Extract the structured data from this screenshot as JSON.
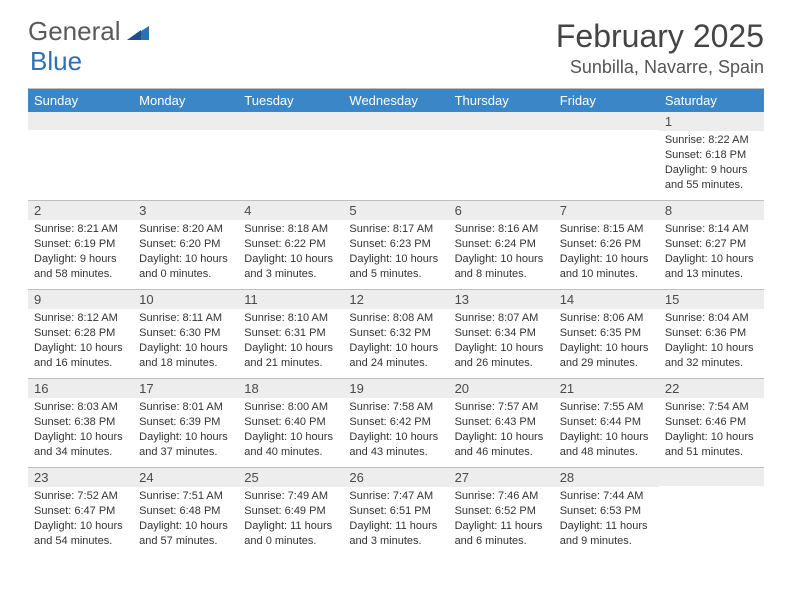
{
  "logo": {
    "part1": "General",
    "part2": "Blue"
  },
  "title": "February 2025",
  "location": "Sunbilla, Navarre, Spain",
  "colors": {
    "header_bg": "#3b86c6",
    "header_text": "#ffffff",
    "daynum_bg": "#ededed",
    "border": "#bfbfbf",
    "text": "#333333",
    "logo_gray": "#5a5a5a",
    "logo_blue": "#2f6fb3"
  },
  "dayHeaders": [
    "Sunday",
    "Monday",
    "Tuesday",
    "Wednesday",
    "Thursday",
    "Friday",
    "Saturday"
  ],
  "weeks": [
    [
      null,
      null,
      null,
      null,
      null,
      null,
      {
        "n": "1",
        "sr": "Sunrise: 8:22 AM",
        "ss": "Sunset: 6:18 PM",
        "dl1": "Daylight: 9 hours",
        "dl2": "and 55 minutes."
      }
    ],
    [
      {
        "n": "2",
        "sr": "Sunrise: 8:21 AM",
        "ss": "Sunset: 6:19 PM",
        "dl1": "Daylight: 9 hours",
        "dl2": "and 58 minutes."
      },
      {
        "n": "3",
        "sr": "Sunrise: 8:20 AM",
        "ss": "Sunset: 6:20 PM",
        "dl1": "Daylight: 10 hours",
        "dl2": "and 0 minutes."
      },
      {
        "n": "4",
        "sr": "Sunrise: 8:18 AM",
        "ss": "Sunset: 6:22 PM",
        "dl1": "Daylight: 10 hours",
        "dl2": "and 3 minutes."
      },
      {
        "n": "5",
        "sr": "Sunrise: 8:17 AM",
        "ss": "Sunset: 6:23 PM",
        "dl1": "Daylight: 10 hours",
        "dl2": "and 5 minutes."
      },
      {
        "n": "6",
        "sr": "Sunrise: 8:16 AM",
        "ss": "Sunset: 6:24 PM",
        "dl1": "Daylight: 10 hours",
        "dl2": "and 8 minutes."
      },
      {
        "n": "7",
        "sr": "Sunrise: 8:15 AM",
        "ss": "Sunset: 6:26 PM",
        "dl1": "Daylight: 10 hours",
        "dl2": "and 10 minutes."
      },
      {
        "n": "8",
        "sr": "Sunrise: 8:14 AM",
        "ss": "Sunset: 6:27 PM",
        "dl1": "Daylight: 10 hours",
        "dl2": "and 13 minutes."
      }
    ],
    [
      {
        "n": "9",
        "sr": "Sunrise: 8:12 AM",
        "ss": "Sunset: 6:28 PM",
        "dl1": "Daylight: 10 hours",
        "dl2": "and 16 minutes."
      },
      {
        "n": "10",
        "sr": "Sunrise: 8:11 AM",
        "ss": "Sunset: 6:30 PM",
        "dl1": "Daylight: 10 hours",
        "dl2": "and 18 minutes."
      },
      {
        "n": "11",
        "sr": "Sunrise: 8:10 AM",
        "ss": "Sunset: 6:31 PM",
        "dl1": "Daylight: 10 hours",
        "dl2": "and 21 minutes."
      },
      {
        "n": "12",
        "sr": "Sunrise: 8:08 AM",
        "ss": "Sunset: 6:32 PM",
        "dl1": "Daylight: 10 hours",
        "dl2": "and 24 minutes."
      },
      {
        "n": "13",
        "sr": "Sunrise: 8:07 AM",
        "ss": "Sunset: 6:34 PM",
        "dl1": "Daylight: 10 hours",
        "dl2": "and 26 minutes."
      },
      {
        "n": "14",
        "sr": "Sunrise: 8:06 AM",
        "ss": "Sunset: 6:35 PM",
        "dl1": "Daylight: 10 hours",
        "dl2": "and 29 minutes."
      },
      {
        "n": "15",
        "sr": "Sunrise: 8:04 AM",
        "ss": "Sunset: 6:36 PM",
        "dl1": "Daylight: 10 hours",
        "dl2": "and 32 minutes."
      }
    ],
    [
      {
        "n": "16",
        "sr": "Sunrise: 8:03 AM",
        "ss": "Sunset: 6:38 PM",
        "dl1": "Daylight: 10 hours",
        "dl2": "and 34 minutes."
      },
      {
        "n": "17",
        "sr": "Sunrise: 8:01 AM",
        "ss": "Sunset: 6:39 PM",
        "dl1": "Daylight: 10 hours",
        "dl2": "and 37 minutes."
      },
      {
        "n": "18",
        "sr": "Sunrise: 8:00 AM",
        "ss": "Sunset: 6:40 PM",
        "dl1": "Daylight: 10 hours",
        "dl2": "and 40 minutes."
      },
      {
        "n": "19",
        "sr": "Sunrise: 7:58 AM",
        "ss": "Sunset: 6:42 PM",
        "dl1": "Daylight: 10 hours",
        "dl2": "and 43 minutes."
      },
      {
        "n": "20",
        "sr": "Sunrise: 7:57 AM",
        "ss": "Sunset: 6:43 PM",
        "dl1": "Daylight: 10 hours",
        "dl2": "and 46 minutes."
      },
      {
        "n": "21",
        "sr": "Sunrise: 7:55 AM",
        "ss": "Sunset: 6:44 PM",
        "dl1": "Daylight: 10 hours",
        "dl2": "and 48 minutes."
      },
      {
        "n": "22",
        "sr": "Sunrise: 7:54 AM",
        "ss": "Sunset: 6:46 PM",
        "dl1": "Daylight: 10 hours",
        "dl2": "and 51 minutes."
      }
    ],
    [
      {
        "n": "23",
        "sr": "Sunrise: 7:52 AM",
        "ss": "Sunset: 6:47 PM",
        "dl1": "Daylight: 10 hours",
        "dl2": "and 54 minutes."
      },
      {
        "n": "24",
        "sr": "Sunrise: 7:51 AM",
        "ss": "Sunset: 6:48 PM",
        "dl1": "Daylight: 10 hours",
        "dl2": "and 57 minutes."
      },
      {
        "n": "25",
        "sr": "Sunrise: 7:49 AM",
        "ss": "Sunset: 6:49 PM",
        "dl1": "Daylight: 11 hours",
        "dl2": "and 0 minutes."
      },
      {
        "n": "26",
        "sr": "Sunrise: 7:47 AM",
        "ss": "Sunset: 6:51 PM",
        "dl1": "Daylight: 11 hours",
        "dl2": "and 3 minutes."
      },
      {
        "n": "27",
        "sr": "Sunrise: 7:46 AM",
        "ss": "Sunset: 6:52 PM",
        "dl1": "Daylight: 11 hours",
        "dl2": "and 6 minutes."
      },
      {
        "n": "28",
        "sr": "Sunrise: 7:44 AM",
        "ss": "Sunset: 6:53 PM",
        "dl1": "Daylight: 11 hours",
        "dl2": "and 9 minutes."
      },
      null
    ]
  ]
}
